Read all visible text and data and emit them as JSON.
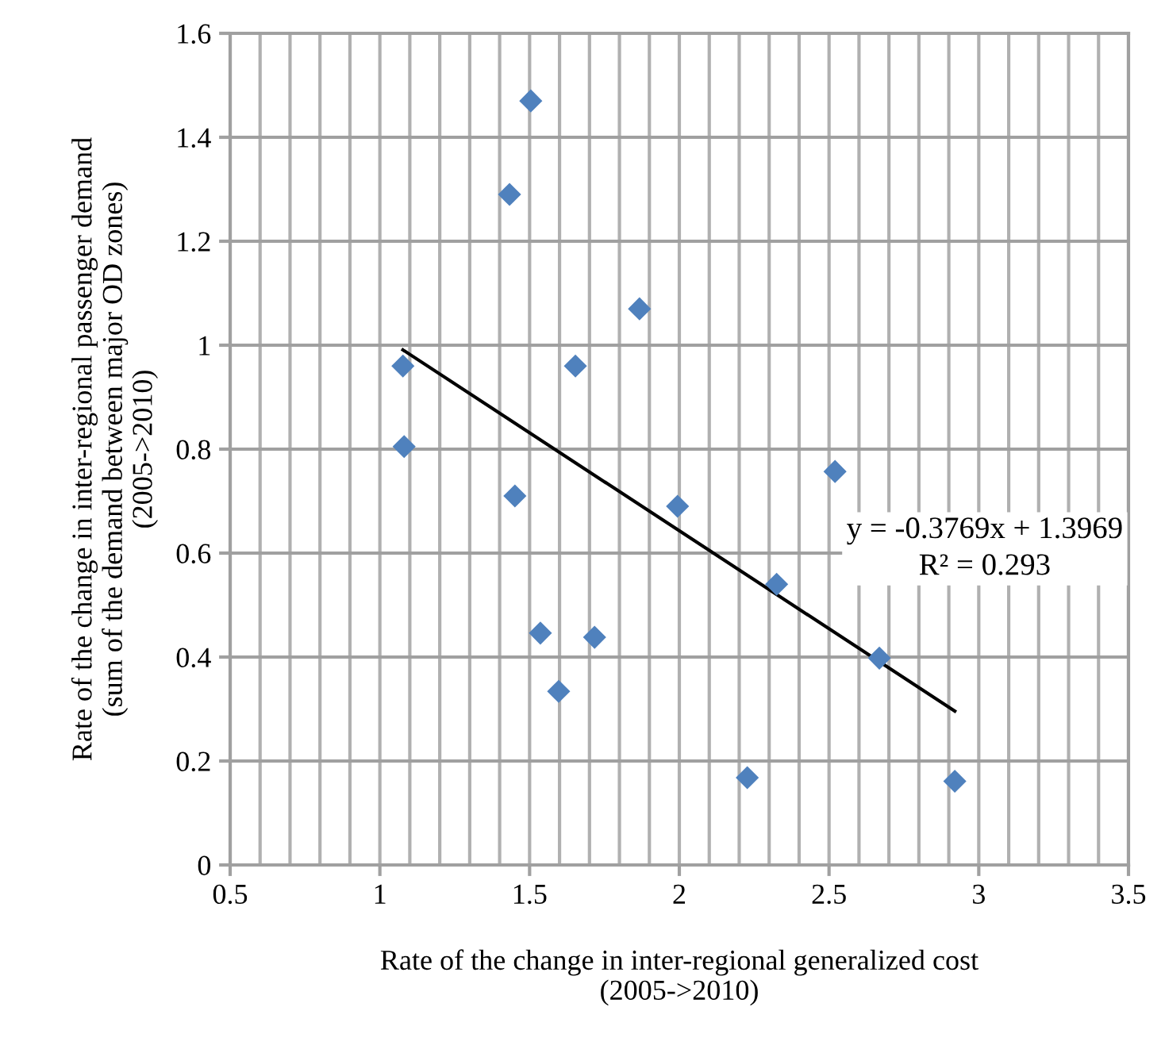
{
  "chart_data": {
    "type": "scatter",
    "xlabel": "Rate of the change in inter-regional generalized cost\n(2005->2010)",
    "ylabel": "Rate of the change in inter-regional passenger demand\n(sum of the demand between major OD zones)\n(2005->2010)",
    "series": [
      {
        "color": "#4f81bd",
        "marker": "diamond",
        "x": [
          1.504,
          1.433,
          1.867,
          1.077,
          1.653,
          1.081,
          1.451,
          1.994,
          1.536,
          1.717,
          1.597,
          2.52,
          2.325,
          2.668,
          2.227,
          2.92
        ],
        "values": [
          1.47,
          1.29,
          1.07,
          0.96,
          0.96,
          0.805,
          0.71,
          0.69,
          0.446,
          0.438,
          0.334,
          0.757,
          0.54,
          0.398,
          0.168,
          0.161
        ]
      },
      {
        "type": "line",
        "color": "#000000",
        "marker": "none",
        "line_style": "solid",
        "x": [
          1.077,
          2.92
        ],
        "values": [
          0.991,
          0.296
        ]
      }
    ],
    "annotations": [
      "y = -0.3769x + 1.3969\nR² = 0.293"
    ],
    "xlim": [
      0.5,
      3.5
    ],
    "xticks": [
      0.5,
      1,
      1.5,
      2,
      2.5,
      3,
      3.5
    ],
    "ylim": [
      0,
      1.6
    ],
    "yticks": [
      0,
      0.2,
      0.4,
      0.6,
      0.8,
      1,
      1.2,
      1.4,
      1.6
    ],
    "grid": true,
    "legend": false
  }
}
